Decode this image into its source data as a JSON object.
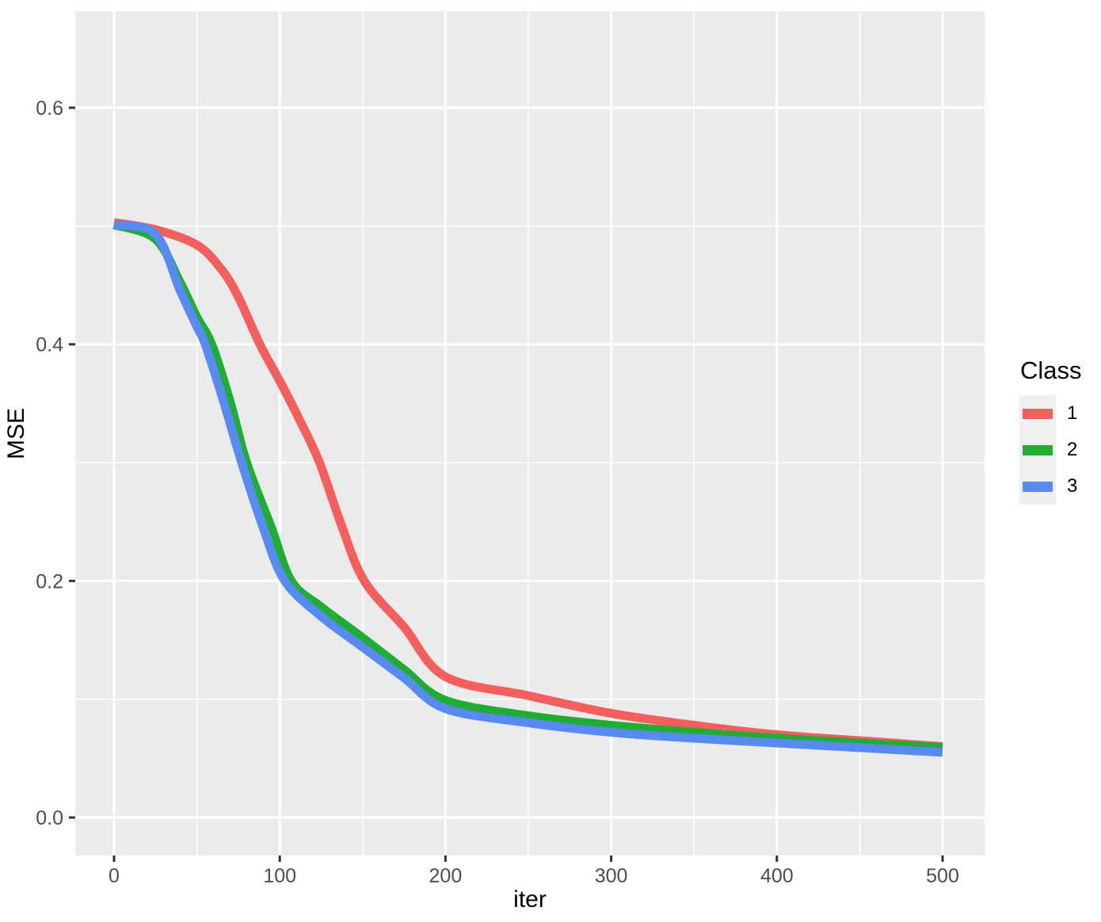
{
  "theme": {
    "background": "#FFFFFF",
    "panel_background": "#EBEBEB",
    "grid_color": "#FFFFFF",
    "tick_mark_color": "#333333",
    "tick_label_color": "#4D4D4D",
    "title_color": "#000000",
    "legend_key_background": "#EFEFEF"
  },
  "legend": {
    "title": "Class",
    "position": "right",
    "items": [
      {
        "label": "1",
        "color": "#F25F5C"
      },
      {
        "label": "2",
        "color": "#21AD33"
      },
      {
        "label": "3",
        "color": "#578BF2"
      }
    ]
  },
  "chart_data": {
    "type": "line",
    "title": "",
    "xlabel": "iter",
    "ylabel": "MSE",
    "legend_title": "Class",
    "legend_position": "right",
    "grid": "white major and minor gridlines on grey panel",
    "xlim": [
      -23.42,
      525.33
    ],
    "ylim": [
      -0.0321,
      0.6817
    ],
    "x_ticks": {
      "values": [
        0,
        100,
        200,
        300,
        400,
        500
      ],
      "labels": [
        "0",
        "100",
        "200",
        "300",
        "400",
        "500"
      ],
      "minor": [
        50,
        150,
        250,
        350,
        450
      ]
    },
    "y_ticks": {
      "values": [
        0.0,
        0.2,
        0.4,
        0.6
      ],
      "labels": [
        "0.0",
        "0.2",
        "0.4",
        "0.6"
      ],
      "minor": [
        0.1,
        0.3,
        0.5
      ]
    },
    "series": [
      {
        "name": "1",
        "color": "#F25F5C",
        "points": [
          [
            0,
            0.503
          ],
          [
            25,
            0.497
          ],
          [
            50,
            0.484
          ],
          [
            65,
            0.463
          ],
          [
            75,
            0.44
          ],
          [
            88,
            0.4
          ],
          [
            100,
            0.369
          ],
          [
            112,
            0.336
          ],
          [
            124,
            0.3
          ],
          [
            137,
            0.248
          ],
          [
            151,
            0.2
          ],
          [
            175,
            0.161
          ],
          [
            200,
            0.119
          ],
          [
            250,
            0.103
          ],
          [
            300,
            0.088
          ],
          [
            350,
            0.078
          ],
          [
            400,
            0.07
          ],
          [
            450,
            0.065
          ],
          [
            500,
            0.06
          ]
        ]
      },
      {
        "name": "2",
        "color": "#21AD33",
        "points": [
          [
            0,
            0.501
          ],
          [
            25,
            0.489
          ],
          [
            40,
            0.452
          ],
          [
            50,
            0.423
          ],
          [
            59,
            0.4
          ],
          [
            70,
            0.352
          ],
          [
            80,
            0.3
          ],
          [
            95,
            0.245
          ],
          [
            107,
            0.2
          ],
          [
            125,
            0.178
          ],
          [
            150,
            0.152
          ],
          [
            175,
            0.125
          ],
          [
            200,
            0.099
          ],
          [
            250,
            0.086
          ],
          [
            300,
            0.078
          ],
          [
            350,
            0.072
          ],
          [
            400,
            0.067
          ],
          [
            450,
            0.063
          ],
          [
            500,
            0.059
          ]
        ]
      },
      {
        "name": "3",
        "color": "#578BF2",
        "points": [
          [
            0,
            0.501
          ],
          [
            25,
            0.493
          ],
          [
            40,
            0.445
          ],
          [
            50,
            0.415
          ],
          [
            55,
            0.4
          ],
          [
            66,
            0.352
          ],
          [
            77,
            0.3
          ],
          [
            90,
            0.245
          ],
          [
            103,
            0.2
          ],
          [
            125,
            0.17
          ],
          [
            150,
            0.144
          ],
          [
            175,
            0.118
          ],
          [
            200,
            0.092
          ],
          [
            250,
            0.08
          ],
          [
            300,
            0.072
          ],
          [
            350,
            0.067
          ],
          [
            400,
            0.063
          ],
          [
            450,
            0.059
          ],
          [
            500,
            0.055
          ]
        ]
      }
    ]
  }
}
